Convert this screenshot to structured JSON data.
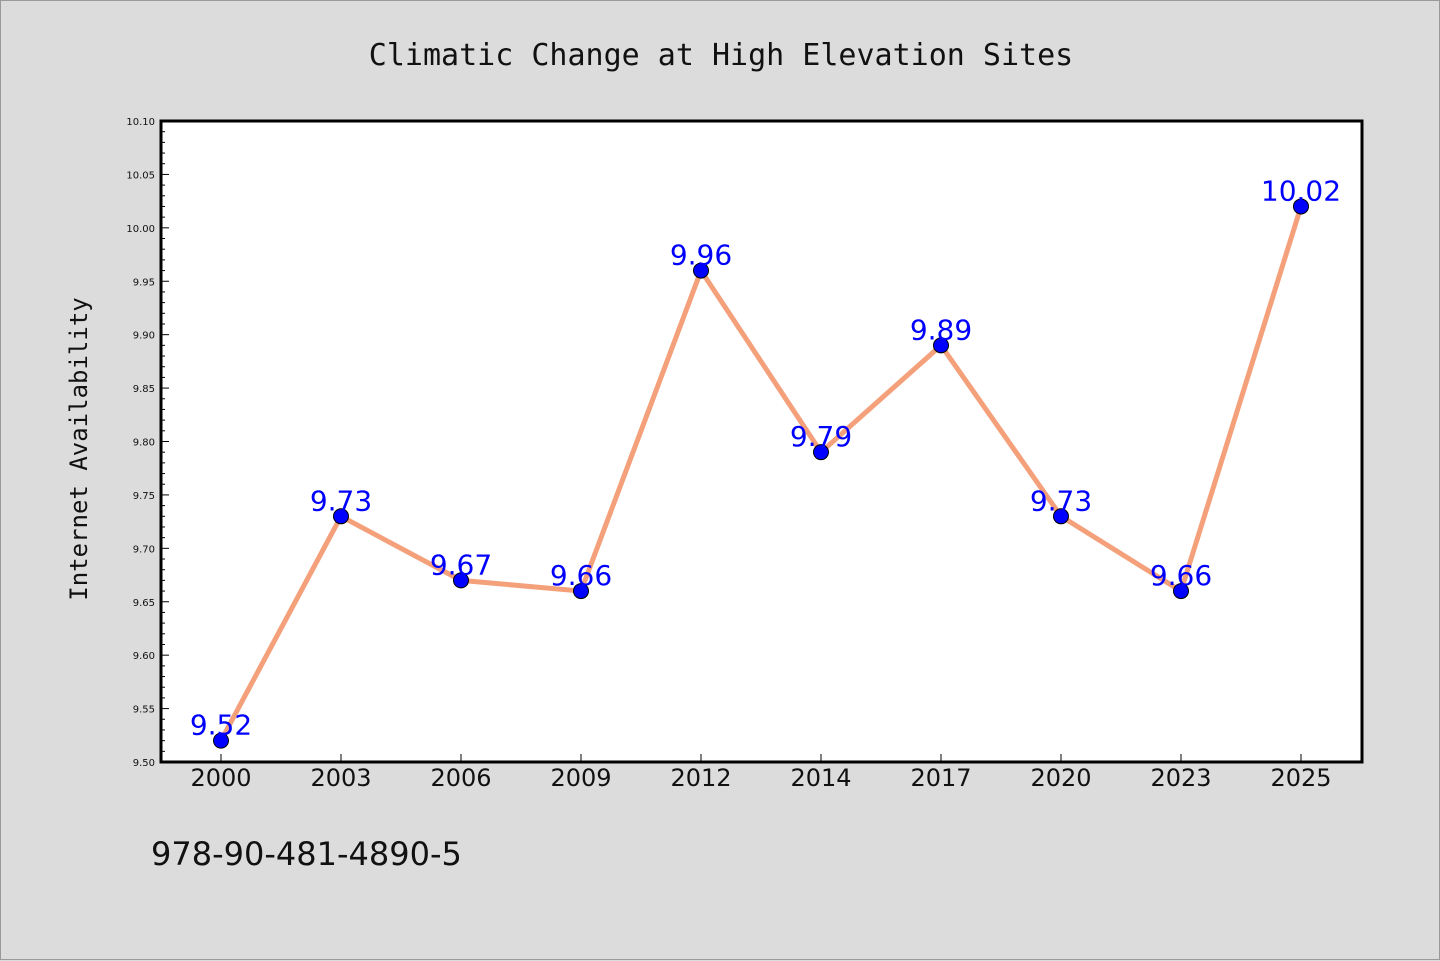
{
  "chart_data": {
    "type": "line",
    "title": "Climatic Change at High Elevation Sites",
    "xlabel": "",
    "ylabel": "Internet Availability",
    "categories": [
      "2000",
      "2003",
      "2006",
      "2009",
      "2012",
      "2014",
      "2017",
      "2020",
      "2023",
      "2025"
    ],
    "series": [
      {
        "values": [
          9.52,
          9.73,
          9.67,
          9.66,
          9.96,
          9.79,
          9.89,
          9.73,
          9.66,
          10.02
        ],
        "data_labels": [
          "9.52",
          "9.73",
          "9.67",
          "9.66",
          "9.96",
          "9.79",
          "9.89",
          "9.73",
          "9.66",
          "10.02"
        ],
        "line_color": "#f4a07a",
        "marker_color": "#0000ff"
      }
    ],
    "ylim": [
      9.5,
      10.1
    ],
    "y_ticks": [
      "9.50",
      "9.55",
      "9.60",
      "9.65",
      "9.70",
      "9.75",
      "9.80",
      "9.85",
      "9.90",
      "9.95",
      "10.00",
      "10.05",
      "10.10"
    ],
    "grid": false,
    "legend": "none"
  },
  "footer": {
    "isbn": "978-90-481-4890-5"
  },
  "colors": {
    "background": "#dcdcdc",
    "plot_background": "#ffffff",
    "label_color": "#0000ff"
  }
}
